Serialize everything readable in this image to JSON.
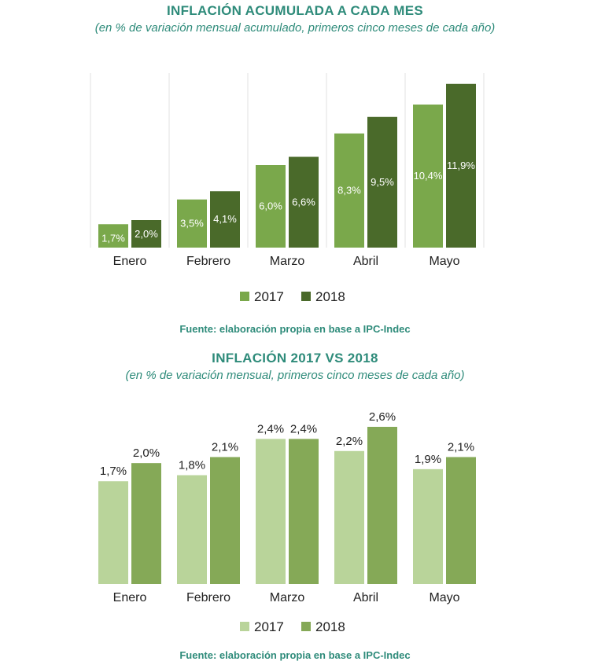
{
  "chart_data": [
    {
      "type": "bar",
      "title": "INFLACIÓN ACUMULADA A CADA MES",
      "subtitle": "(en % de variación mensual acumulado, primeros cinco meses de cada año)",
      "categories": [
        "Enero",
        "Febrero",
        "Marzo",
        "Abril",
        "Mayo"
      ],
      "series": [
        {
          "name": "2017",
          "values": [
            1.7,
            3.5,
            6.0,
            8.3,
            10.4
          ],
          "labels": [
            "1,7%",
            "3,5%",
            "6,0%",
            "8,3%",
            "10,4%"
          ],
          "color": "#7aa84b"
        },
        {
          "name": "2018",
          "values": [
            2.0,
            4.1,
            6.6,
            9.5,
            11.9
          ],
          "labels": [
            "2,0%",
            "4,1%",
            "6,6%",
            "9,5%",
            "11,9%"
          ],
          "color": "#4a6a2a"
        }
      ],
      "ylim": [
        0,
        12
      ],
      "grid": "vertical separators",
      "legend": "bottom",
      "source": "Fuente: elaboración propia en base a IPC-Indec"
    },
    {
      "type": "bar",
      "title": "INFLACIÓN 2017 VS 2018",
      "subtitle": "(en % de variación mensual, primeros cinco meses de cada año)",
      "categories": [
        "Enero",
        "Febrero",
        "Marzo",
        "Abril",
        "Mayo"
      ],
      "series": [
        {
          "name": "2017",
          "values": [
            1.7,
            1.8,
            2.4,
            2.2,
            1.9
          ],
          "labels": [
            "1,7%",
            "1,8%",
            "2,4%",
            "2,2%",
            "1,9%"
          ],
          "color": "#b9d49a"
        },
        {
          "name": "2018",
          "values": [
            2.0,
            2.1,
            2.4,
            2.6,
            2.1
          ],
          "labels": [
            "2,0%",
            "2,1%",
            "2,4%",
            "2,6%",
            "2,1%"
          ],
          "color": "#85a957"
        }
      ],
      "ylim": [
        0,
        2.6
      ],
      "grid": "none",
      "legend": "bottom",
      "source": "Fuente: elaboración propia en base a IPC-Indec"
    }
  ]
}
